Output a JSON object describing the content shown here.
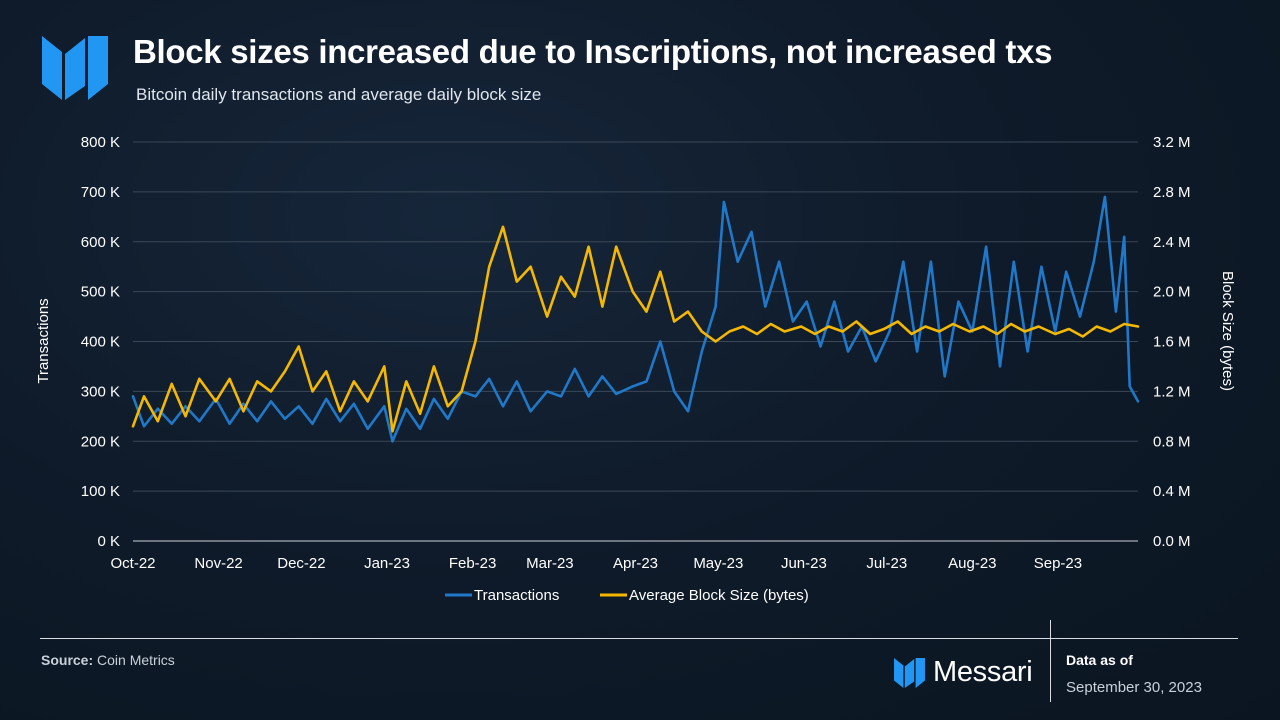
{
  "header": {
    "title": "Block sizes increased due to Inscriptions, not increased txs",
    "subtitle": "Bitcoin daily transactions and average daily block size"
  },
  "footer": {
    "source_label": "Source:",
    "source_value": "Coin Metrics",
    "brand": "Messari",
    "data_as_of_label": "Data as of",
    "data_as_of_date": "September 30, 2023"
  },
  "colors": {
    "transactions": "#1f78c8",
    "block_size": "#f5b800",
    "brand_blue": "#2196f3"
  },
  "icons": [
    "messari-logo-icon"
  ],
  "chart_data": {
    "type": "line",
    "x_axis": {
      "type": "date",
      "range": [
        "2022-10-01",
        "2023-09-30"
      ],
      "ticks": [
        {
          "label": "Oct-22",
          "date": "2022-10-01"
        },
        {
          "label": "Nov-22",
          "date": "2022-11-01"
        },
        {
          "label": "Dec-22",
          "date": "2022-12-01"
        },
        {
          "label": "Jan-23",
          "date": "2023-01-01"
        },
        {
          "label": "Feb-23",
          "date": "2023-02-01"
        },
        {
          "label": "Mar-23",
          "date": "2023-03-01"
        },
        {
          "label": "Apr-23",
          "date": "2023-04-01"
        },
        {
          "label": "May-23",
          "date": "2023-05-01"
        },
        {
          "label": "Jun-23",
          "date": "2023-06-01"
        },
        {
          "label": "Jul-23",
          "date": "2023-07-01"
        },
        {
          "label": "Aug-23",
          "date": "2023-08-01"
        },
        {
          "label": "Sep-23",
          "date": "2023-09-01"
        }
      ]
    },
    "y_left": {
      "label": "Transactions",
      "range": [
        0,
        800000
      ],
      "ticks": [
        {
          "label": "0 K",
          "value": 0
        },
        {
          "label": "100 K",
          "value": 100000
        },
        {
          "label": "200 K",
          "value": 200000
        },
        {
          "label": "300 K",
          "value": 300000
        },
        {
          "label": "400 K",
          "value": 400000
        },
        {
          "label": "500 K",
          "value": 500000
        },
        {
          "label": "600 K",
          "value": 600000
        },
        {
          "label": "700 K",
          "value": 700000
        },
        {
          "label": "800 K",
          "value": 800000
        }
      ]
    },
    "y_right": {
      "label": "Block Size (bytes)",
      "range": [
        0,
        3200000
      ],
      "ticks": [
        {
          "label": "0.0 M",
          "value": 0
        },
        {
          "label": "0.4 M",
          "value": 400000
        },
        {
          "label": "0.8 M",
          "value": 800000
        },
        {
          "label": "1.2 M",
          "value": 1200000
        },
        {
          "label": "1.6 M",
          "value": 1600000
        },
        {
          "label": "2.0 M",
          "value": 2000000
        },
        {
          "label": "2.4 M",
          "value": 2400000
        },
        {
          "label": "2.8 M",
          "value": 2800000
        },
        {
          "label": "3.2 M",
          "value": 3200000
        }
      ]
    },
    "grid": "horizontal",
    "legend_position": "bottom-center",
    "series": [
      {
        "name": "Transactions",
        "axis": "left",
        "color": "#1f78c8",
        "points": [
          [
            "2022-10-01",
            290000
          ],
          [
            "2022-10-05",
            230000
          ],
          [
            "2022-10-10",
            265000
          ],
          [
            "2022-10-15",
            235000
          ],
          [
            "2022-10-20",
            270000
          ],
          [
            "2022-10-25",
            240000
          ],
          [
            "2022-10-31",
            285000
          ],
          [
            "2022-11-05",
            235000
          ],
          [
            "2022-11-10",
            275000
          ],
          [
            "2022-11-15",
            240000
          ],
          [
            "2022-11-20",
            280000
          ],
          [
            "2022-11-25",
            245000
          ],
          [
            "2022-11-30",
            270000
          ],
          [
            "2022-12-05",
            235000
          ],
          [
            "2022-12-10",
            285000
          ],
          [
            "2022-12-15",
            240000
          ],
          [
            "2022-12-20",
            275000
          ],
          [
            "2022-12-25",
            225000
          ],
          [
            "2022-12-31",
            270000
          ],
          [
            "2023-01-03",
            200000
          ],
          [
            "2023-01-08",
            265000
          ],
          [
            "2023-01-13",
            225000
          ],
          [
            "2023-01-18",
            285000
          ],
          [
            "2023-01-23",
            245000
          ],
          [
            "2023-01-28",
            300000
          ],
          [
            "2023-02-02",
            290000
          ],
          [
            "2023-02-07",
            325000
          ],
          [
            "2023-02-12",
            270000
          ],
          [
            "2023-02-17",
            320000
          ],
          [
            "2023-02-22",
            260000
          ],
          [
            "2023-02-28",
            300000
          ],
          [
            "2023-03-05",
            290000
          ],
          [
            "2023-03-10",
            345000
          ],
          [
            "2023-03-15",
            290000
          ],
          [
            "2023-03-20",
            330000
          ],
          [
            "2023-03-25",
            295000
          ],
          [
            "2023-03-31",
            310000
          ],
          [
            "2023-04-05",
            320000
          ],
          [
            "2023-04-10",
            400000
          ],
          [
            "2023-04-15",
            300000
          ],
          [
            "2023-04-20",
            260000
          ],
          [
            "2023-04-25",
            380000
          ],
          [
            "2023-04-30",
            470000
          ],
          [
            "2023-05-03",
            680000
          ],
          [
            "2023-05-08",
            560000
          ],
          [
            "2023-05-13",
            620000
          ],
          [
            "2023-05-18",
            470000
          ],
          [
            "2023-05-23",
            560000
          ],
          [
            "2023-05-28",
            440000
          ],
          [
            "2023-06-02",
            480000
          ],
          [
            "2023-06-07",
            390000
          ],
          [
            "2023-06-12",
            480000
          ],
          [
            "2023-06-17",
            380000
          ],
          [
            "2023-06-22",
            430000
          ],
          [
            "2023-06-27",
            360000
          ],
          [
            "2023-07-02",
            420000
          ],
          [
            "2023-07-07",
            560000
          ],
          [
            "2023-07-12",
            380000
          ],
          [
            "2023-07-17",
            560000
          ],
          [
            "2023-07-22",
            330000
          ],
          [
            "2023-07-27",
            480000
          ],
          [
            "2023-08-01",
            420000
          ],
          [
            "2023-08-06",
            590000
          ],
          [
            "2023-08-11",
            350000
          ],
          [
            "2023-08-16",
            560000
          ],
          [
            "2023-08-21",
            380000
          ],
          [
            "2023-08-26",
            550000
          ],
          [
            "2023-08-31",
            420000
          ],
          [
            "2023-09-04",
            540000
          ],
          [
            "2023-09-09",
            450000
          ],
          [
            "2023-09-14",
            560000
          ],
          [
            "2023-09-18",
            690000
          ],
          [
            "2023-09-22",
            460000
          ],
          [
            "2023-09-25",
            610000
          ],
          [
            "2023-09-27",
            310000
          ],
          [
            "2023-09-30",
            280000
          ]
        ]
      },
      {
        "name": "Average Block Size (bytes)",
        "axis": "right",
        "color": "#f5b800",
        "points": [
          [
            "2022-10-01",
            920000
          ],
          [
            "2022-10-05",
            1160000
          ],
          [
            "2022-10-10",
            960000
          ],
          [
            "2022-10-15",
            1260000
          ],
          [
            "2022-10-20",
            1000000
          ],
          [
            "2022-10-25",
            1300000
          ],
          [
            "2022-10-31",
            1120000
          ],
          [
            "2022-11-05",
            1300000
          ],
          [
            "2022-11-10",
            1040000
          ],
          [
            "2022-11-15",
            1280000
          ],
          [
            "2022-11-20",
            1200000
          ],
          [
            "2022-11-25",
            1360000
          ],
          [
            "2022-11-30",
            1560000
          ],
          [
            "2022-12-05",
            1200000
          ],
          [
            "2022-12-10",
            1360000
          ],
          [
            "2022-12-15",
            1040000
          ],
          [
            "2022-12-20",
            1280000
          ],
          [
            "2022-12-25",
            1120000
          ],
          [
            "2022-12-31",
            1400000
          ],
          [
            "2023-01-03",
            880000
          ],
          [
            "2023-01-08",
            1280000
          ],
          [
            "2023-01-13",
            1020000
          ],
          [
            "2023-01-18",
            1400000
          ],
          [
            "2023-01-23",
            1080000
          ],
          [
            "2023-01-28",
            1200000
          ],
          [
            "2023-02-02",
            1600000
          ],
          [
            "2023-02-07",
            2200000
          ],
          [
            "2023-02-12",
            2520000
          ],
          [
            "2023-02-17",
            2080000
          ],
          [
            "2023-02-22",
            2200000
          ],
          [
            "2023-02-28",
            1800000
          ],
          [
            "2023-03-05",
            2120000
          ],
          [
            "2023-03-10",
            1960000
          ],
          [
            "2023-03-15",
            2360000
          ],
          [
            "2023-03-20",
            1880000
          ],
          [
            "2023-03-25",
            2360000
          ],
          [
            "2023-03-31",
            2000000
          ],
          [
            "2023-04-05",
            1840000
          ],
          [
            "2023-04-10",
            2160000
          ],
          [
            "2023-04-15",
            1760000
          ],
          [
            "2023-04-20",
            1840000
          ],
          [
            "2023-04-25",
            1680000
          ],
          [
            "2023-04-30",
            1600000
          ],
          [
            "2023-05-05",
            1680000
          ],
          [
            "2023-05-10",
            1720000
          ],
          [
            "2023-05-15",
            1660000
          ],
          [
            "2023-05-20",
            1740000
          ],
          [
            "2023-05-25",
            1680000
          ],
          [
            "2023-05-31",
            1720000
          ],
          [
            "2023-06-05",
            1660000
          ],
          [
            "2023-06-10",
            1720000
          ],
          [
            "2023-06-15",
            1680000
          ],
          [
            "2023-06-20",
            1760000
          ],
          [
            "2023-06-25",
            1660000
          ],
          [
            "2023-06-30",
            1700000
          ],
          [
            "2023-07-05",
            1760000
          ],
          [
            "2023-07-10",
            1660000
          ],
          [
            "2023-07-15",
            1720000
          ],
          [
            "2023-07-20",
            1680000
          ],
          [
            "2023-07-25",
            1740000
          ],
          [
            "2023-07-31",
            1680000
          ],
          [
            "2023-08-05",
            1720000
          ],
          [
            "2023-08-10",
            1660000
          ],
          [
            "2023-08-15",
            1740000
          ],
          [
            "2023-08-20",
            1680000
          ],
          [
            "2023-08-25",
            1720000
          ],
          [
            "2023-08-31",
            1660000
          ],
          [
            "2023-09-05",
            1700000
          ],
          [
            "2023-09-10",
            1640000
          ],
          [
            "2023-09-15",
            1720000
          ],
          [
            "2023-09-20",
            1680000
          ],
          [
            "2023-09-25",
            1740000
          ],
          [
            "2023-09-30",
            1720000
          ]
        ]
      }
    ]
  }
}
